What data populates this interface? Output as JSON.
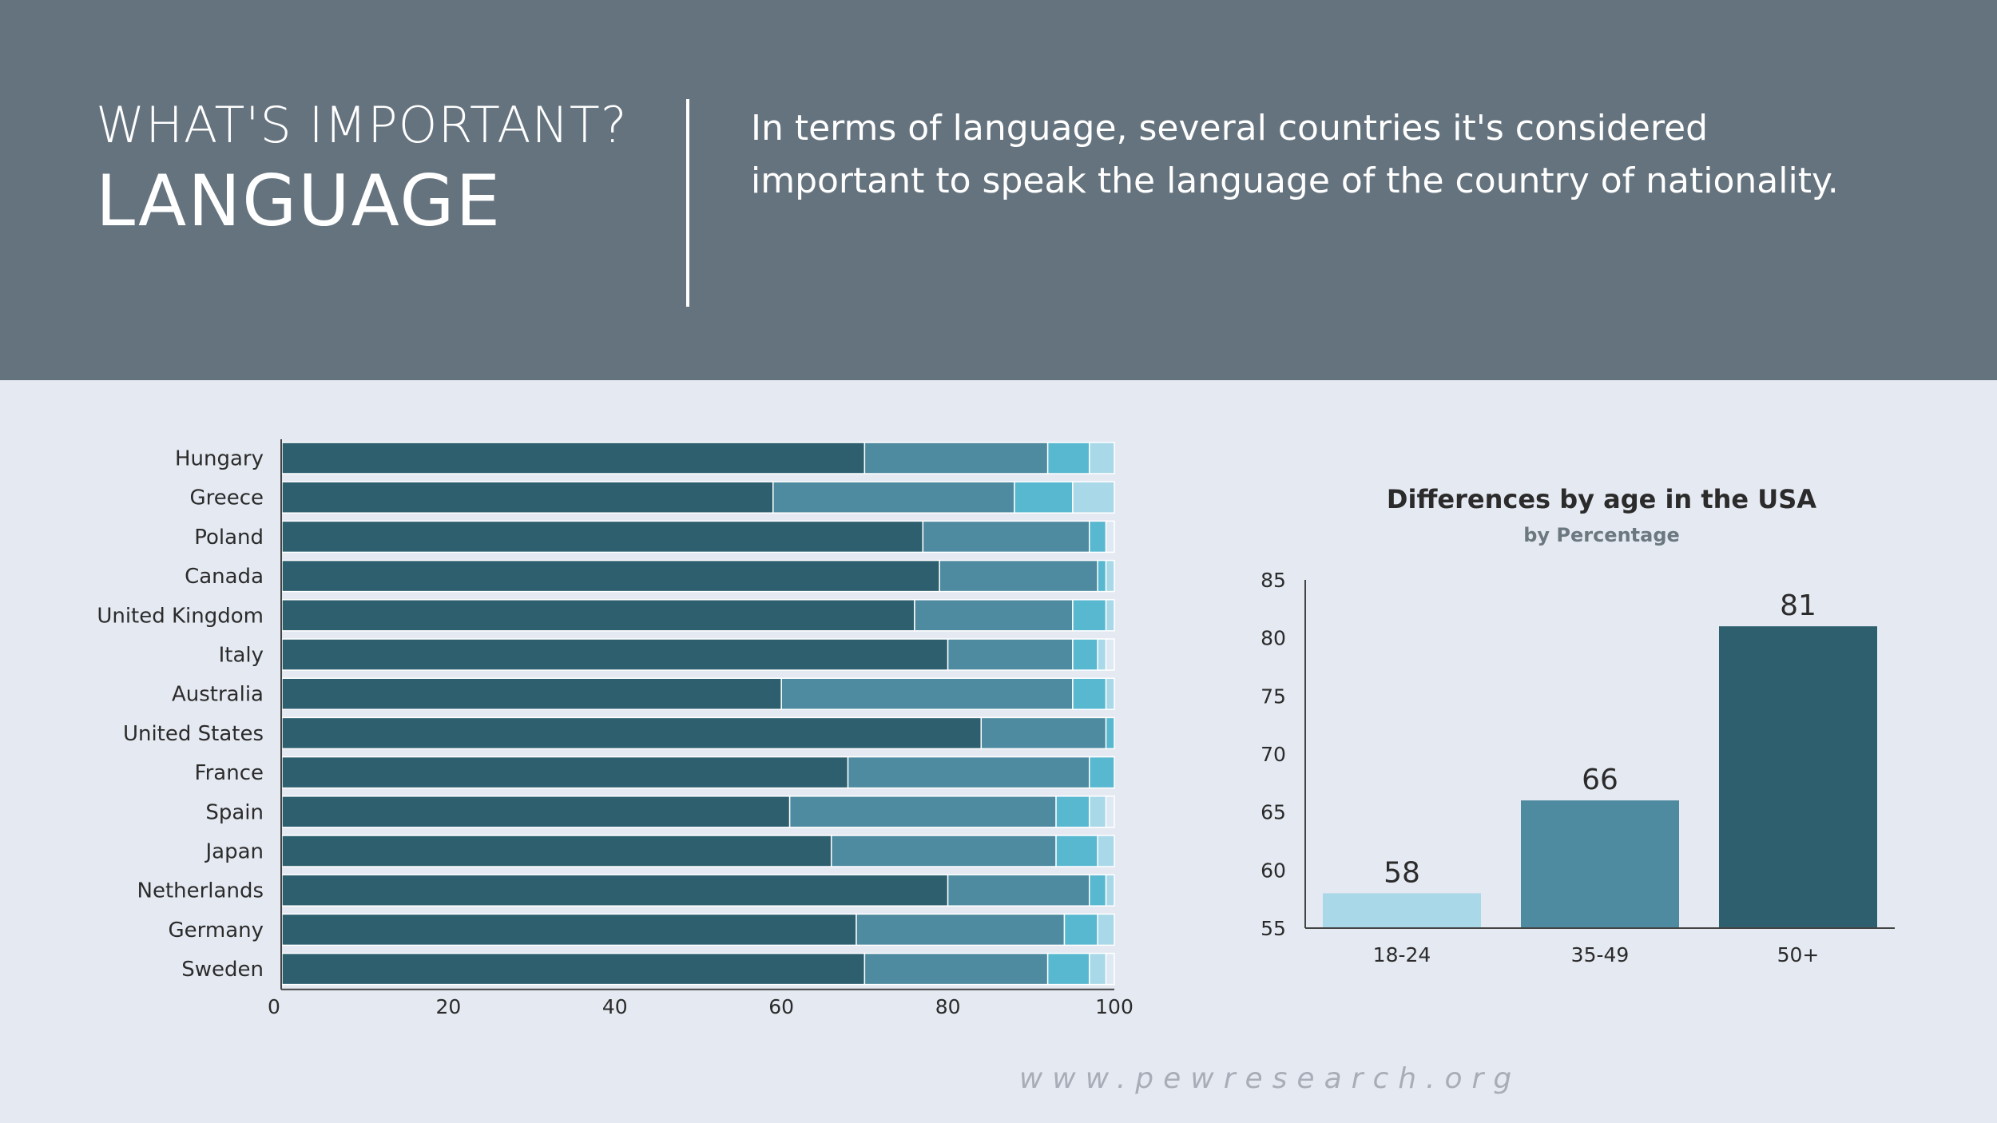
{
  "header": {
    "kicker": "WHAT'S IMPORTANT?",
    "title": "LANGUAGE",
    "description": "In terms of language, several countries it's considered important to speak the language of the country of nationality."
  },
  "footer": {
    "url": "www.pewresearch.org"
  },
  "colors": {
    "header_bg": "#65737e",
    "page_bg": "#e5e9f2",
    "seg1": "#2d5f6f",
    "seg2": "#4e8aa0",
    "seg3": "#58b8d0",
    "seg4": "#a9d8e8",
    "seg5": "#dfe9f3"
  },
  "chart_data": [
    {
      "type": "bar",
      "orientation": "horizontal",
      "stacked": true,
      "categories": [
        "Hungary",
        "Greece",
        "Poland",
        "Canada",
        "United Kingdom",
        "Italy",
        "Australia",
        "United States",
        "France",
        "Spain",
        "Japan",
        "Netherlands",
        "Germany",
        "Sweden"
      ],
      "series": [
        {
          "values": [
            70,
            59,
            77,
            79,
            76,
            80,
            60,
            84,
            68,
            61,
            66,
            80,
            69,
            70
          ]
        },
        {
          "values": [
            22,
            29,
            20,
            19,
            19,
            15,
            35,
            15,
            29,
            32,
            27,
            17,
            25,
            22
          ]
        },
        {
          "values": [
            5,
            7,
            2,
            1,
            4,
            3,
            4,
            1,
            3,
            4,
            5,
            2,
            4,
            5
          ]
        },
        {
          "values": [
            3,
            5,
            0,
            1,
            1,
            1,
            1,
            0,
            0,
            2,
            2,
            1,
            2,
            2
          ]
        },
        {
          "values": [
            0,
            0,
            1,
            0,
            0,
            1,
            0,
            0,
            0,
            1,
            0,
            0,
            0,
            1
          ]
        }
      ],
      "xlim": [
        0,
        100
      ],
      "xticks": [
        "0",
        "20",
        "40",
        "60",
        "80",
        "100"
      ]
    },
    {
      "type": "bar",
      "title": "Differences by age in the USA",
      "subtitle": "by Percentage",
      "categories": [
        "18-24",
        "35-49",
        "50+"
      ],
      "values": [
        58,
        66,
        81
      ],
      "colors": [
        "#a9d8e8",
        "#4e8aa0",
        "#2d5f6f"
      ],
      "ylim": [
        55,
        85
      ],
      "yticks": [
        "85",
        "80",
        "75",
        "70",
        "65",
        "60",
        "55"
      ]
    }
  ]
}
